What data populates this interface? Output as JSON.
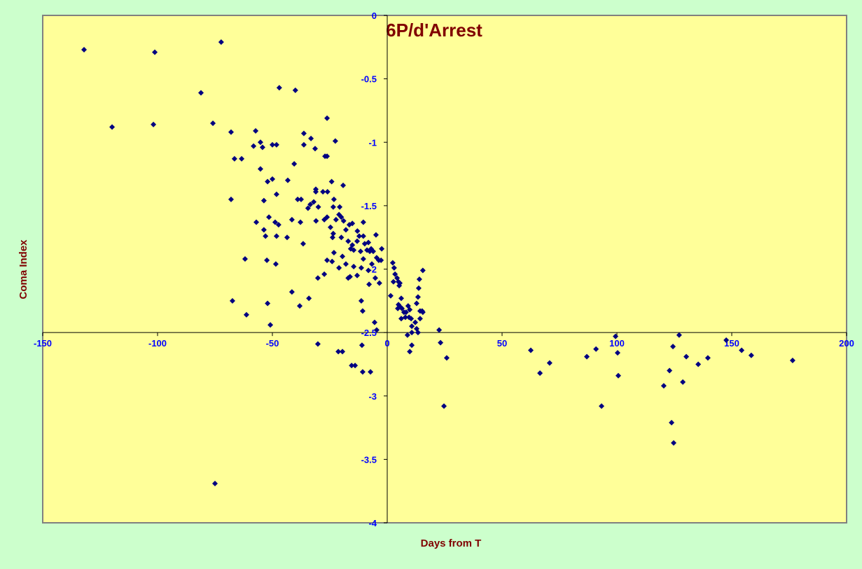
{
  "chart_data": {
    "type": "scatter",
    "title": "6P/d'Arrest",
    "xlabel": "Days from  T",
    "ylabel": "Coma Index",
    "color": "#000080",
    "xlim": [
      -150,
      200
    ],
    "ylim": [
      -4,
      0
    ],
    "xticks": [
      -150,
      -100,
      -50,
      0,
      50,
      100,
      150,
      200
    ],
    "yticks": [
      0,
      -0.5,
      -1,
      -1.5,
      -2,
      -2.5,
      -3,
      -3.5,
      -4
    ],
    "x_axis_at": -2.5,
    "y_axis_at": 0,
    "x": [
      -132,
      -101.2,
      -72.3,
      -81.1,
      -119.8,
      -101.8,
      -75.9,
      -47,
      -40,
      -68,
      -26.2,
      -57.3,
      -66.5,
      -63.4,
      -58.2,
      -55.2,
      -54.3,
      -50,
      -48.2,
      -36.3,
      -33.2,
      -36.3,
      -31.4,
      -22.6,
      -27.1,
      -26.2,
      -55.2,
      -40.5,
      -52.1,
      -50,
      -43.3,
      -48.2,
      -24.2,
      -19.2,
      -68,
      -53.7,
      -39,
      -37.5,
      -34.5,
      -33.5,
      -32,
      -31.1,
      -31.1,
      -28,
      -26,
      -30,
      -23.2,
      -23.5,
      -20.7,
      -57,
      -53.7,
      -51.5,
      -48.8,
      -47.3,
      -41.5,
      -37.8,
      -31,
      -27.4,
      -26.2,
      -24.7,
      -22.3,
      -21,
      -20,
      -19,
      -18,
      -16.5,
      -15.2,
      -10.4,
      -48.2,
      -43.6,
      -53,
      -36.6,
      -23.5,
      -23.8,
      -20,
      -17,
      -15.2,
      -13,
      -12.2,
      -10.4,
      -8.2,
      -4.9,
      -15.9,
      -14.6,
      -13.1,
      -11.6,
      -9.8,
      -8.8,
      -7.6,
      -7,
      -6.1,
      -2.4,
      -23.2,
      -19.5,
      -10.4,
      -4.6,
      -3.7,
      -61.9,
      -52.4,
      -48.5,
      -26.2,
      -24,
      -21,
      -18,
      -14.6,
      -11.3,
      -8.2,
      -6.7,
      -2.7,
      -17,
      -16.2,
      -13.1,
      -5.2,
      -3.4,
      -30.2,
      -27.4,
      -7.9,
      -41.5,
      -67.4,
      -38.1,
      -34.1,
      -61.3,
      -52.1,
      -50.9,
      -11.3,
      -10.7,
      -5.5,
      -4.6,
      2.4,
      3,
      3.4,
      4.3,
      4.9,
      5.5,
      2.7,
      1.5,
      5.2,
      6.1,
      4.9,
      5.8,
      4.6,
      6.4,
      7.3,
      8.2,
      9.1,
      9.8,
      7.9,
      9.5,
      10.4,
      6.1,
      12.8,
      13.4,
      13.7,
      14,
      15.5,
      14.3,
      15.2,
      15.5,
      14.3,
      12.2,
      10.7,
      10.7,
      12.8,
      13.4,
      8.8,
      22.6,
      -30.2,
      -21.3,
      -19.5,
      -11,
      9.8,
      10.7,
      23.2,
      25.9,
      24.7,
      -15.5,
      -14,
      -10.7,
      -7.3,
      -75,
      62.5,
      66.5,
      70.7,
      86.9,
      90.9,
      99.4,
      100.3,
      100.6,
      93.3,
      120.4,
      122.9,
      124.4,
      127.1,
      130.2,
      128.7,
      123.8,
      124.7,
      135.4,
      139.6,
      147.6,
      154.3,
      158.5,
      176.5
    ],
    "y": [
      -0.27,
      -0.29,
      -0.21,
      -0.61,
      -0.88,
      -0.86,
      -0.85,
      -0.57,
      -0.59,
      -0.92,
      -0.81,
      -0.91,
      -1.13,
      -1.13,
      -1.03,
      -1,
      -1.04,
      -1.02,
      -1.02,
      -0.93,
      -0.97,
      -1.02,
      -1.05,
      -0.99,
      -1.11,
      -1.11,
      -1.21,
      -1.17,
      -1.31,
      -1.29,
      -1.3,
      -1.41,
      -1.31,
      -1.34,
      -1.45,
      -1.46,
      -1.45,
      -1.45,
      -1.52,
      -1.49,
      -1.47,
      -1.37,
      -1.39,
      -1.39,
      -1.39,
      -1.51,
      -1.45,
      -1.51,
      -1.51,
      -1.63,
      -1.69,
      -1.59,
      -1.63,
      -1.65,
      -1.61,
      -1.63,
      -1.62,
      -1.61,
      -1.59,
      -1.67,
      -1.61,
      -1.57,
      -1.59,
      -1.62,
      -1.69,
      -1.65,
      -1.64,
      -1.63,
      -1.74,
      -1.75,
      -1.74,
      -1.8,
      -1.72,
      -1.75,
      -1.75,
      -1.78,
      -1.81,
      -1.7,
      -1.74,
      -1.74,
      -1.79,
      -1.73,
      -1.84,
      -1.85,
      -1.78,
      -1.86,
      -1.8,
      -1.85,
      -1.86,
      -1.84,
      -1.86,
      -1.84,
      -1.87,
      -1.9,
      -1.92,
      -1.91,
      -1.93,
      -1.92,
      -1.93,
      -1.96,
      -1.93,
      -1.94,
      -1.99,
      -1.96,
      -1.98,
      -1.99,
      -2.01,
      -1.96,
      -1.93,
      -2.07,
      -2.06,
      -2.05,
      -2.07,
      -2.11,
      -2.07,
      -2.04,
      -2.12,
      -2.18,
      -2.25,
      -2.29,
      -2.23,
      -2.36,
      -2.27,
      -2.44,
      -2.25,
      -2.33,
      -2.42,
      -2.48,
      -1.95,
      -1.99,
      -2.04,
      -2.07,
      -2.1,
      -2.11,
      -2.1,
      -2.21,
      -2.13,
      -2.23,
      -2.28,
      -2.3,
      -2.31,
      -2.31,
      -2.34,
      -2.34,
      -2.29,
      -2.32,
      -2.38,
      -2.38,
      -2.39,
      -2.39,
      -2.27,
      -2.22,
      -2.15,
      -2.08,
      -2.01,
      -2.33,
      -2.33,
      -2.34,
      -2.39,
      -2.42,
      -2.45,
      -2.5,
      -2.47,
      -2.5,
      -2.52,
      -2.48,
      -2.59,
      -2.65,
      -2.65,
      -2.6,
      -2.65,
      -2.6,
      -2.58,
      -2.7,
      -3.08,
      -2.76,
      -2.76,
      -2.81,
      -2.81,
      -3.69,
      -2.64,
      -2.82,
      -2.74,
      -2.69,
      -2.63,
      -2.53,
      -2.66,
      -2.84,
      -3.08,
      -2.92,
      -2.8,
      -2.61,
      -2.52,
      -2.69,
      -2.89,
      -3.21,
      -3.37,
      -2.75,
      -2.7,
      -2.56,
      -2.64,
      -2.68,
      -2.72
    ]
  }
}
